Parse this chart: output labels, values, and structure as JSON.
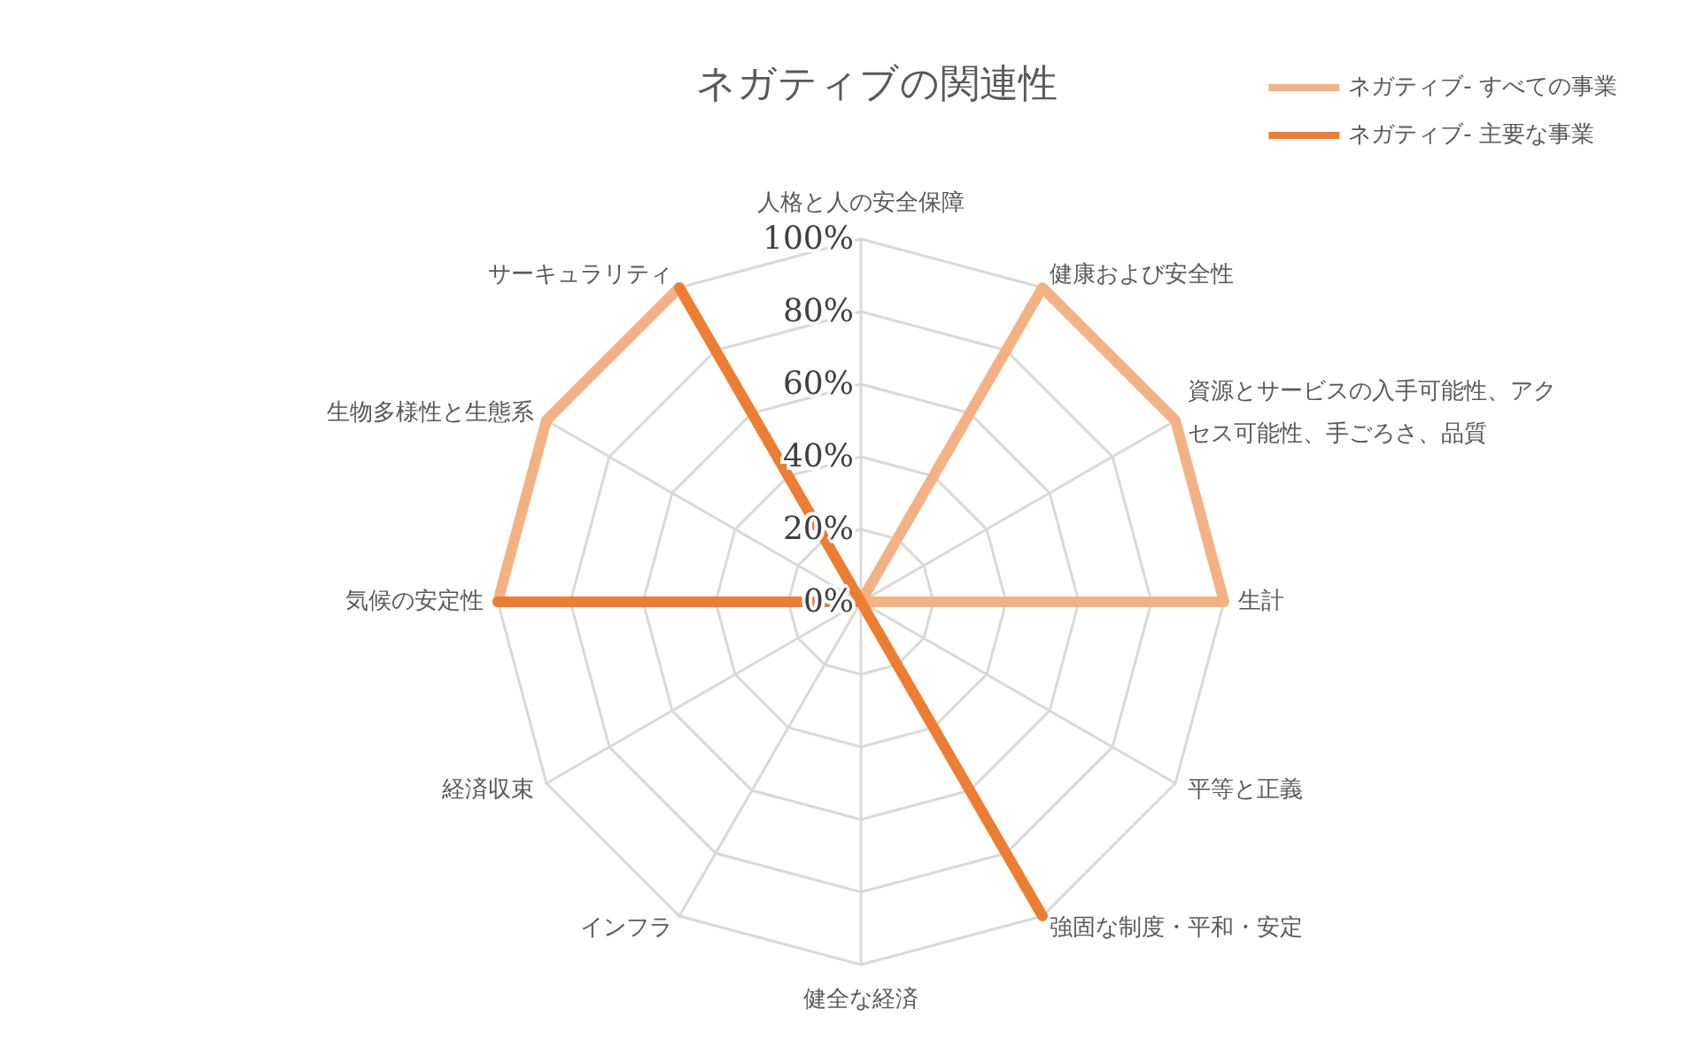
{
  "chart_data": {
    "type": "radar",
    "title": "ネガティブの関連性",
    "categories": [
      "人格と人の安全保障",
      "健康および安全性",
      "資源とサービスの入手可能性、アクセス可能性、手ごろさ、品質",
      "生計",
      "平等と正義",
      "強固な制度・平和・安定",
      "健全な経済",
      "インフラ",
      "経済収束",
      "気候の安定性",
      "生物多様性と生態系",
      "サーキュラリティ"
    ],
    "series": [
      {
        "name": "ネガティブ- すべての事業",
        "color": "#f4b183",
        "values": [
          0,
          100,
          100,
          100,
          0,
          0,
          0,
          0,
          0,
          100,
          100,
          100
        ]
      },
      {
        "name": "ネガティブ- 主要な事業",
        "color": "#ed7d31",
        "values": [
          0,
          0,
          0,
          0,
          0,
          100,
          0,
          0,
          0,
          100,
          0,
          100
        ]
      }
    ],
    "ylim": [
      0,
      100
    ],
    "yticks": [
      {
        "value": 0,
        "label": "0%"
      },
      {
        "value": 20,
        "label": "20%"
      },
      {
        "value": 40,
        "label": "40%"
      },
      {
        "value": 60,
        "label": "60%"
      },
      {
        "value": 80,
        "label": "80%"
      },
      {
        "value": 100,
        "label": "100%"
      }
    ],
    "legend": "top right"
  }
}
